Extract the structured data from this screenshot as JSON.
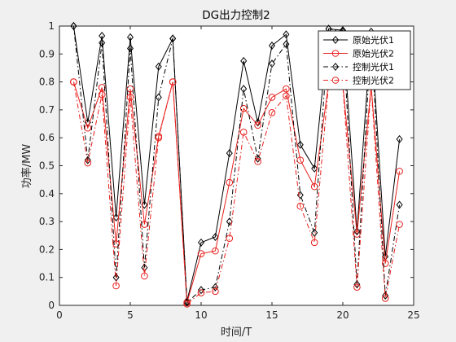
{
  "chart_data": {
    "type": "line",
    "title": "DG出力控制2",
    "xlabel": "时间/T",
    "ylabel": "功率/MW",
    "xlim": [
      0,
      25
    ],
    "ylim": [
      0,
      1
    ],
    "xticks": [
      0,
      5,
      10,
      15,
      20,
      25
    ],
    "yticks": [
      0,
      0.1,
      0.2,
      0.3,
      0.4,
      0.5,
      0.6,
      0.7,
      0.8,
      0.9,
      1
    ],
    "grid": false,
    "legend_position": "top-right",
    "x": [
      1,
      2,
      3,
      4,
      5,
      6,
      7,
      8,
      9,
      10,
      11,
      12,
      13,
      14,
      15,
      16,
      17,
      18,
      19,
      20,
      21,
      22,
      23,
      24
    ],
    "series": [
      {
        "name": "原始光伏1",
        "color": "#000000",
        "line_style": "solid",
        "marker": "diamond",
        "values": [
          1.0,
          0.655,
          0.965,
          0.315,
          0.96,
          0.36,
          0.855,
          0.955,
          0.015,
          0.225,
          0.245,
          0.545,
          0.875,
          0.655,
          0.93,
          0.97,
          0.575,
          0.49,
          0.99,
          0.985,
          0.265,
          0.98,
          0.175,
          0.595
        ]
      },
      {
        "name": "原始光伏2",
        "color": "#e8201c",
        "line_style": "solid",
        "marker": "circle",
        "values": [
          0.8,
          0.635,
          0.78,
          0.22,
          0.775,
          0.29,
          0.605,
          0.8,
          0.01,
          0.185,
          0.195,
          0.44,
          0.705,
          0.645,
          0.745,
          0.775,
          0.52,
          0.425,
          0.795,
          0.79,
          0.255,
          0.785,
          0.15,
          0.48
        ]
      },
      {
        "name": "控制光伏1",
        "color": "#000000",
        "line_style": "dashdot",
        "marker": "diamond",
        "values": [
          1.0,
          0.52,
          0.94,
          0.1,
          0.92,
          0.135,
          0.745,
          0.955,
          0.01,
          0.055,
          0.065,
          0.3,
          0.775,
          0.525,
          0.865,
          0.935,
          0.395,
          0.26,
          0.99,
          0.98,
          0.075,
          0.97,
          0.035,
          0.36
        ]
      },
      {
        "name": "控制光伏2",
        "color": "#e8201c",
        "line_style": "dashdot",
        "marker": "circle",
        "values": [
          0.8,
          0.51,
          0.755,
          0.07,
          0.745,
          0.105,
          0.6,
          0.8,
          0.005,
          0.045,
          0.05,
          0.24,
          0.62,
          0.515,
          0.69,
          0.75,
          0.355,
          0.225,
          0.795,
          0.79,
          0.065,
          0.785,
          0.025,
          0.29
        ]
      }
    ]
  }
}
